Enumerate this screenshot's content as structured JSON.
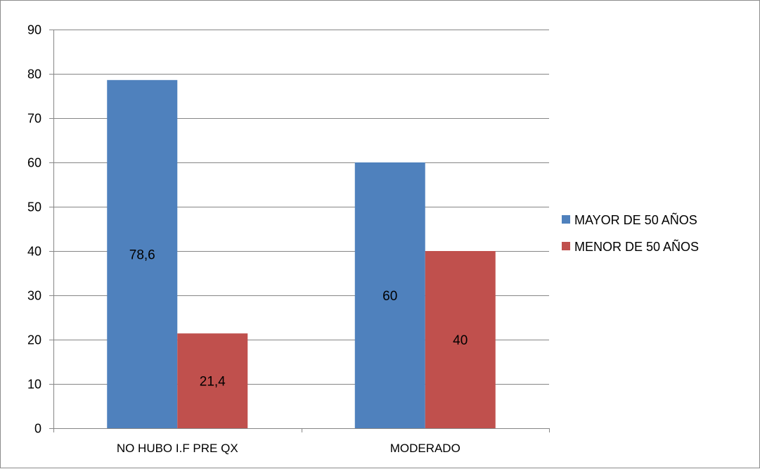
{
  "chart_data": {
    "type": "bar",
    "categories": [
      "NO HUBO I.F PRE QX",
      "MODERADO"
    ],
    "series": [
      {
        "name": "MAYOR DE 50 AÑOS",
        "values": [
          78.6,
          60
        ],
        "labels": [
          "78,6",
          "60"
        ],
        "color": "#4f81bd"
      },
      {
        "name": "MENOR DE 50 AÑOS",
        "values": [
          21.4,
          40
        ],
        "labels": [
          "21,4",
          "40"
        ],
        "color": "#c0504d"
      }
    ],
    "title": "",
    "xlabel": "",
    "ylabel": "",
    "ylim": [
      0,
      90
    ],
    "yticks": [
      0,
      10,
      20,
      30,
      40,
      50,
      60,
      70,
      80,
      90
    ],
    "grid": true,
    "legend_position": "right",
    "gridline_color": "#868686"
  }
}
